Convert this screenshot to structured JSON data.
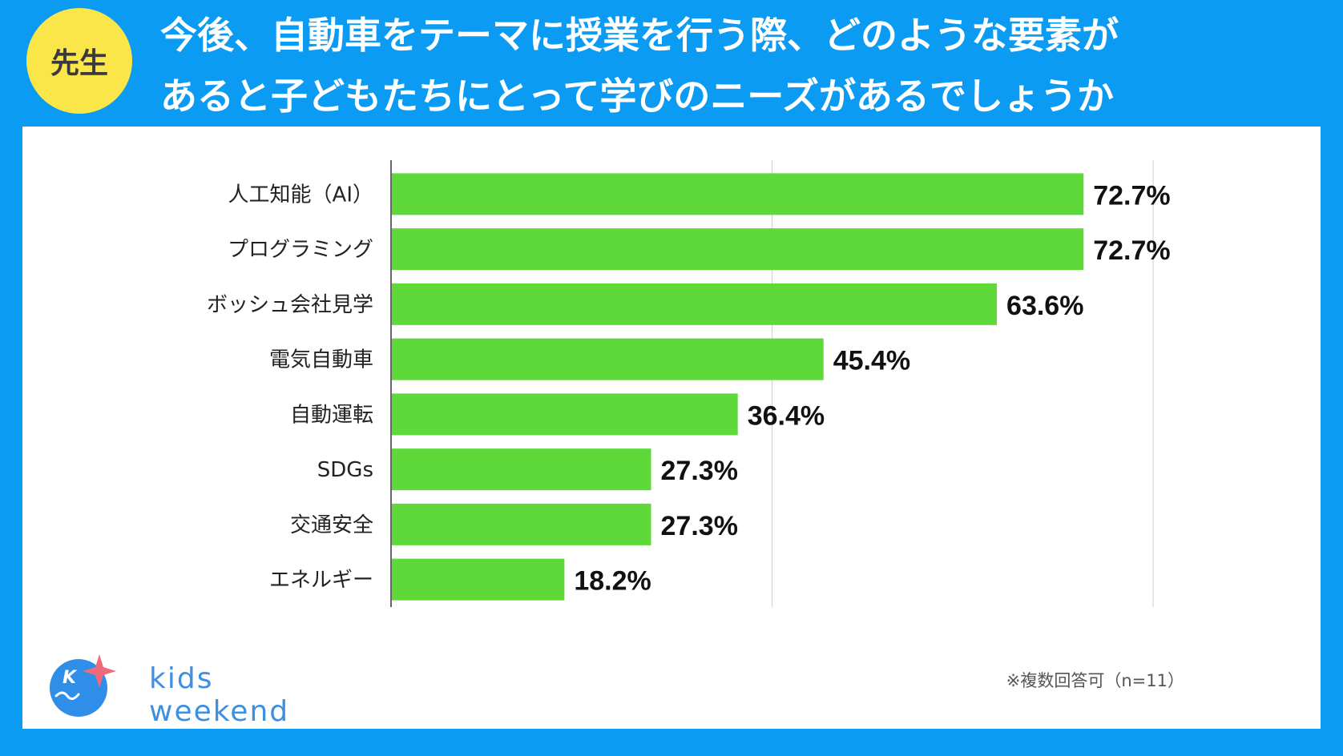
{
  "badge": "先生",
  "title": {
    "line1": "今後、自動車をテーマに授業を行う際、どのような要素が",
    "line2": "あると子どもたちにとって学びのニーズがあるでしょうか"
  },
  "chart_data": {
    "type": "bar",
    "orientation": "horizontal",
    "categories": [
      "人工知能（AI）",
      "プログラミング",
      "ボッシュ会社見学",
      "電気自動車",
      "自動運転",
      "SDGs",
      "交通安全",
      "エネルギー"
    ],
    "values": [
      72.7,
      72.7,
      63.6,
      45.4,
      36.4,
      27.3,
      27.3,
      18.2
    ],
    "value_labels": [
      "72.7%",
      "72.7%",
      "63.6%",
      "45.4%",
      "36.4%",
      "27.3%",
      "27.3%",
      "18.2%"
    ],
    "xlim": [
      0,
      80
    ],
    "gridlines": [
      40,
      80
    ],
    "bar_color": "#5fd93a"
  },
  "footnote": "※複数回答可（n=11）",
  "brand": {
    "name": "kids weekend",
    "mark": "K",
    "text_color": "#3d8fe0",
    "circle_color": "#2f8ee8",
    "star_color": "#ef6b7b"
  }
}
